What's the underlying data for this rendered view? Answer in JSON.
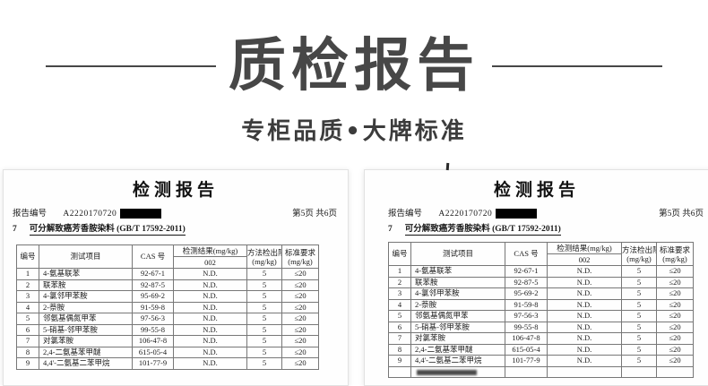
{
  "hero": {
    "title": "质检报告",
    "subtitle": "专柜品质•大牌标准"
  },
  "document": {
    "title": "检测报告",
    "report_no_label": "报告编号",
    "report_no": "A2220170720",
    "page_info": "第5页 共6页",
    "section_no": "7",
    "section_title": "可分解致癌芳香胺染料 (GB/T 17592-2011)",
    "table": {
      "headers": {
        "no": "编号",
        "item": "测试项目",
        "cas": "CAS 号",
        "result": "检测结果(mg/kg)",
        "result_sub": "002",
        "limit_line1": "方法检出限",
        "limit_line2": "(mg/kg)",
        "req_line1": "标准要求",
        "req_line2": "(mg/kg)"
      },
      "rows": [
        [
          "1",
          "4-氨基联苯",
          "92-67-1",
          "N.D.",
          "5",
          "≤20"
        ],
        [
          "2",
          "联苯胺",
          "92-87-5",
          "N.D.",
          "5",
          "≤20"
        ],
        [
          "3",
          "4-氯邻甲苯胺",
          "95-69-2",
          "N.D.",
          "5",
          "≤20"
        ],
        [
          "4",
          "2-萘胺",
          "91-59-8",
          "N.D.",
          "5",
          "≤20"
        ],
        [
          "5",
          "邻氨基偶氮甲苯",
          "97-56-3",
          "N.D.",
          "5",
          "≤20"
        ],
        [
          "6",
          "5-硝基-邻甲苯胺",
          "99-55-8",
          "N.D.",
          "5",
          "≤20"
        ],
        [
          "7",
          "对氯苯胺",
          "106-47-8",
          "N.D.",
          "5",
          "≤20"
        ],
        [
          "8",
          "2,4-二氨基苯甲醚",
          "615-05-4",
          "N.D.",
          "5",
          "≤20"
        ],
        [
          "9",
          "4,4'-二氨基二苯甲烷",
          "101-77-9",
          "N.D.",
          "5",
          "≤20"
        ]
      ]
    }
  },
  "colors": {
    "title": "#474747",
    "subtitle": "#3c3c3c",
    "doc-text": "#1a1a1a",
    "table-border": "#777777",
    "redaction": "#000000",
    "paper-border": "#e2e2e2"
  }
}
